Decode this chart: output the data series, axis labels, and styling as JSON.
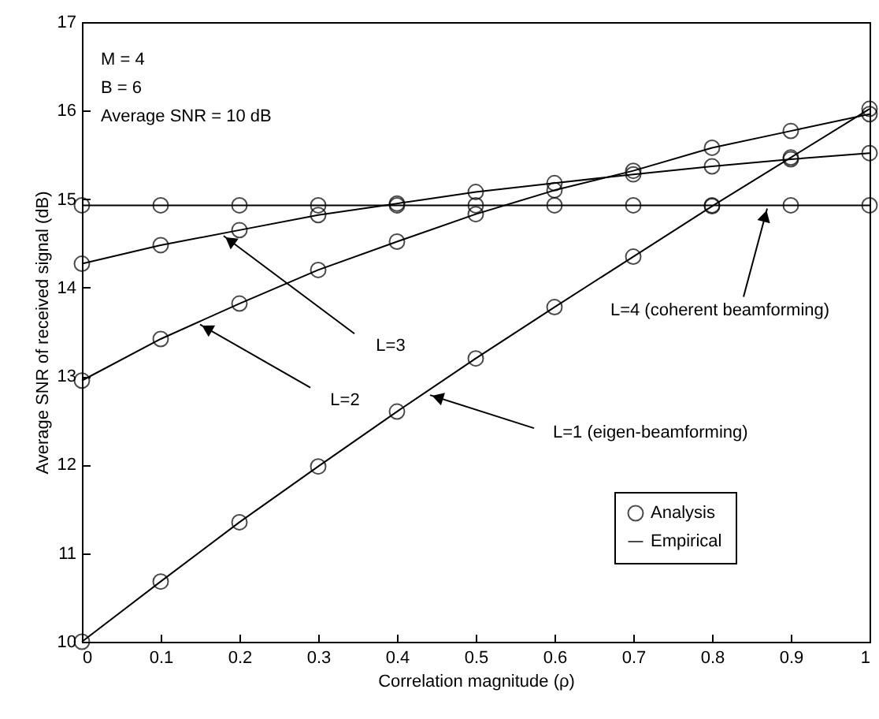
{
  "chart_data": {
    "type": "line",
    "xlabel": "Correlation magnitude (ρ)",
    "ylabel": "Average SNR of received signal (dB)",
    "x": [
      0,
      0.1,
      0.2,
      0.3,
      0.4,
      0.5,
      0.6,
      0.7,
      0.8,
      0.9,
      1
    ],
    "xlim": [
      0,
      1
    ],
    "xticks": [
      0,
      0.1,
      0.2,
      0.3,
      0.4,
      0.5,
      0.6,
      0.7,
      0.8,
      0.9,
      1
    ],
    "ylim": [
      10,
      17
    ],
    "yticks": [
      10,
      11,
      12,
      13,
      14,
      15,
      16,
      17
    ],
    "grid": false,
    "legend": "bottom right",
    "line_style": "solid",
    "series": [
      {
        "name": "Analysis",
        "type": "scatter",
        "marker": "circle",
        "color": "#000000",
        "values": [
          10,
          10.68,
          11.35,
          11.98,
          12.6,
          13.2,
          13.78,
          14.35,
          14.92,
          15.47,
          16.02
        ]
      },
      {
        "type": "scatter",
        "marker": "circle",
        "color": "#000000",
        "values": [
          12.95,
          13.42,
          13.82,
          14.2,
          14.52,
          14.83,
          15.1,
          15.32,
          15.58,
          15.77,
          15.96
        ]
      },
      {
        "type": "scatter",
        "marker": "circle",
        "color": "#000000",
        "values": [
          14.27,
          14.48,
          14.65,
          14.82,
          14.95,
          15.08,
          15.18,
          15.28,
          15.37,
          15.45,
          15.52
        ]
      },
      {
        "type": "scatter",
        "marker": "circle",
        "color": "#000000",
        "values": [
          14.93,
          14.93,
          14.93,
          14.93,
          14.93,
          14.93,
          14.93,
          14.93,
          14.93,
          14.93,
          14.93
        ]
      },
      {
        "name": "Empirical",
        "color": "#000000",
        "values": [
          10,
          10.68,
          11.35,
          11.98,
          12.6,
          13.2,
          13.78,
          14.35,
          14.92,
          15.47,
          16.02
        ]
      },
      {
        "color": "#000000",
        "values": [
          12.95,
          13.42,
          13.82,
          14.2,
          14.52,
          14.83,
          15.1,
          15.32,
          15.58,
          15.77,
          15.96
        ]
      },
      {
        "color": "#000000",
        "values": [
          14.27,
          14.48,
          14.65,
          14.82,
          14.95,
          15.08,
          15.18,
          15.28,
          15.37,
          15.45,
          15.52
        ]
      },
      {
        "color": "#000000",
        "values": [
          14.93,
          14.93,
          14.93,
          14.93,
          14.93,
          14.93,
          14.93,
          14.93,
          14.93,
          14.93,
          14.93
        ]
      }
    ],
    "annotations": [
      "M = 4",
      "B = 6",
      "Average SNR = 10 dB",
      {
        "text": "L=3",
        "x": 0.18,
        "y": 14.62
      },
      {
        "text": "L=2",
        "x": 0.15,
        "y": 13.62
      },
      {
        "text": "L=1 (eigen-beamforming)",
        "x": 0.44,
        "y": 12.84
      },
      {
        "text": "L=4 (coherent beamforming)",
        "x": 0.87,
        "y": 14.93
      }
    ]
  }
}
